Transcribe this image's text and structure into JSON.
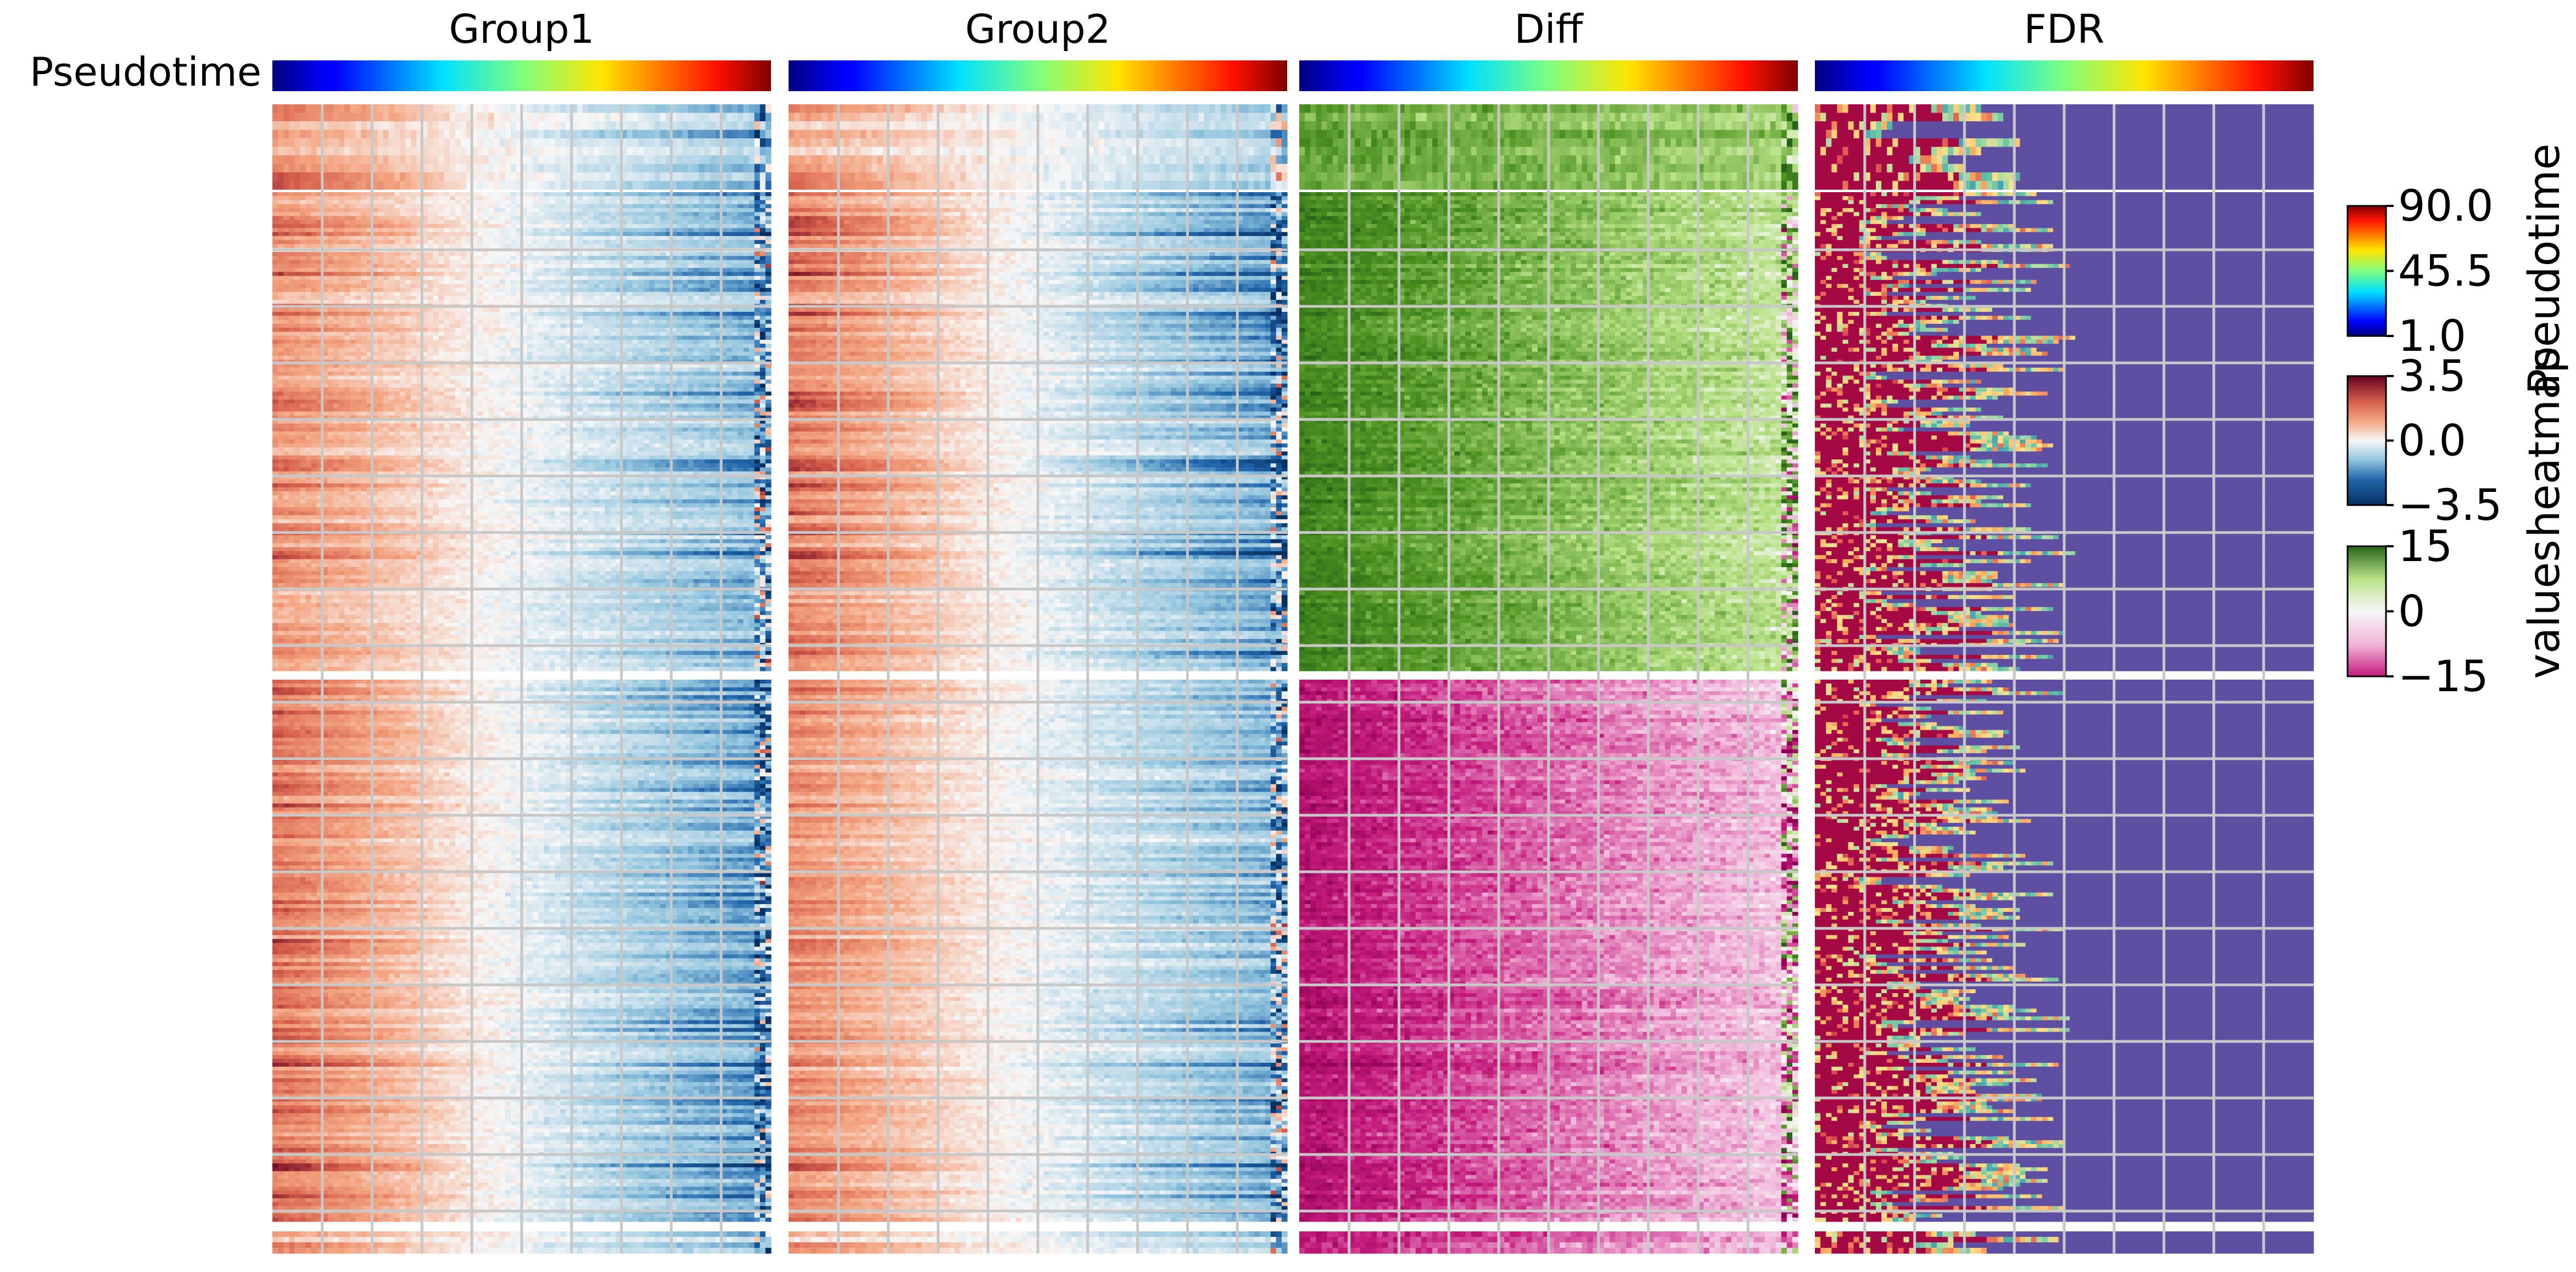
{
  "chart_data": {
    "type": "heatmap",
    "panels": [
      {
        "key": "group1",
        "title": "Group1",
        "colormap": "RdBu_r"
      },
      {
        "key": "group2",
        "title": "Group2",
        "colormap": "RdBu_r"
      },
      {
        "key": "diff",
        "title": "Diff",
        "colormap": "PiYG"
      },
      {
        "key": "fdr",
        "title": "FDR",
        "colormap": "Spectral_r"
      }
    ],
    "top_annotation": {
      "label": "Pseudotime",
      "colormap": "jet",
      "range": [
        1.0,
        90.0
      ]
    },
    "row_clusters": [
      {
        "id": 1,
        "rows": 10
      },
      {
        "id": 2,
        "rows": 120
      },
      {
        "id": 3,
        "rows": 140
      },
      {
        "id": 4,
        "rows": 4
      }
    ],
    "n_columns": 90,
    "colorbars": [
      {
        "title": "Pseudotime",
        "colormap": "jet",
        "ticks": [
          "90.0",
          "45.5",
          "1.0"
        ],
        "range": [
          1.0,
          90.0
        ]
      },
      {
        "title": "heatmap",
        "colormap": "RdBu_r",
        "ticks": [
          "3.5",
          "0.0",
          "−3.5"
        ],
        "range": [
          -3.5,
          3.5
        ]
      },
      {
        "title": "values",
        "colormap": "PiYG",
        "ticks": [
          "15",
          "0",
          "−15"
        ],
        "range": [
          -15,
          15
        ]
      }
    ],
    "grid": true,
    "legend_position": "right"
  },
  "colors": {
    "fdr_background": "#5e4fa2",
    "grid": "#c8c8c8"
  }
}
